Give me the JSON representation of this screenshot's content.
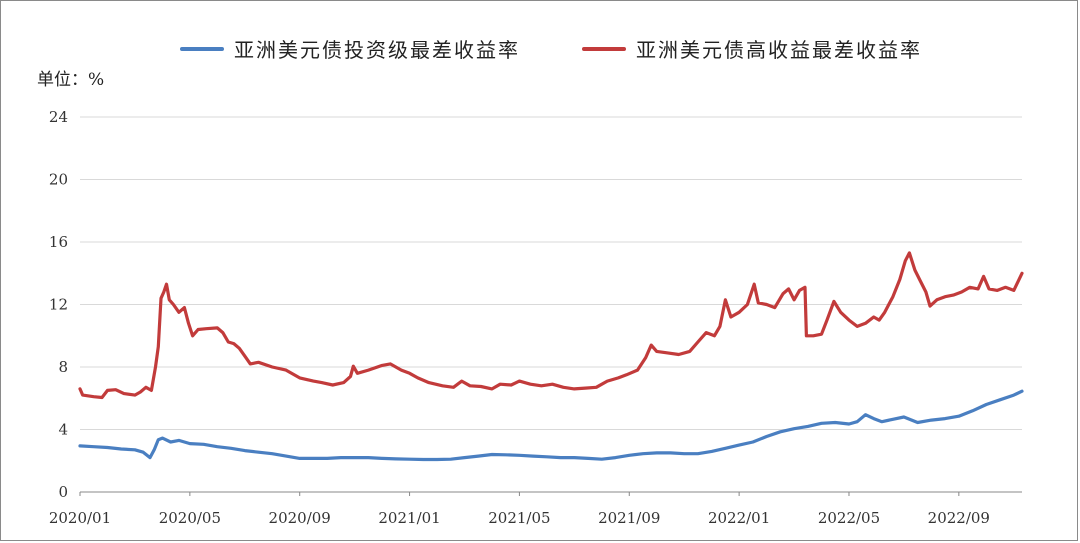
{
  "unit_label": "单位：%",
  "colors": {
    "series_0": "#4a7fc1",
    "series_1": "#c23b3b",
    "grid": "#d9d9d9",
    "axis": "#888888"
  },
  "chart_data": {
    "type": "line",
    "title": "",
    "xlabel": "",
    "ylabel": "单位：%",
    "ylim": [
      0,
      24
    ],
    "yticks": [
      "0",
      "4",
      "8",
      "12",
      "16",
      "20",
      "24"
    ],
    "grid": true,
    "legend_position": "top",
    "x_ticks": [
      "2020/01",
      "2020/05",
      "2020/09",
      "2021/01",
      "2021/05",
      "2021/09",
      "2022/01",
      "2022/05",
      "2022/09"
    ],
    "x_range_months": [
      0,
      34.3
    ],
    "series": [
      {
        "name": "亚洲美元债投资级最差收益率",
        "color": "#4a7fc1",
        "points": [
          [
            0,
            2.95
          ],
          [
            0.5,
            2.9
          ],
          [
            1,
            2.85
          ],
          [
            1.5,
            2.75
          ],
          [
            2,
            2.7
          ],
          [
            2.3,
            2.55
          ],
          [
            2.55,
            2.2
          ],
          [
            2.7,
            2.7
          ],
          [
            2.85,
            3.35
          ],
          [
            3.0,
            3.45
          ],
          [
            3.3,
            3.2
          ],
          [
            3.6,
            3.3
          ],
          [
            4,
            3.1
          ],
          [
            4.5,
            3.05
          ],
          [
            5,
            2.9
          ],
          [
            5.5,
            2.8
          ],
          [
            6,
            2.65
          ],
          [
            6.5,
            2.55
          ],
          [
            7,
            2.45
          ],
          [
            7.5,
            2.3
          ],
          [
            8,
            2.15
          ],
          [
            8.5,
            2.15
          ],
          [
            9,
            2.15
          ],
          [
            9.5,
            2.2
          ],
          [
            10,
            2.2
          ],
          [
            10.5,
            2.2
          ],
          [
            11,
            2.15
          ],
          [
            11.5,
            2.12
          ],
          [
            12,
            2.1
          ],
          [
            12.5,
            2.08
          ],
          [
            13,
            2.08
          ],
          [
            13.5,
            2.1
          ],
          [
            14,
            2.2
          ],
          [
            14.5,
            2.3
          ],
          [
            15,
            2.4
          ],
          [
            15.5,
            2.38
          ],
          [
            16,
            2.35
          ],
          [
            16.5,
            2.3
          ],
          [
            17,
            2.25
          ],
          [
            17.5,
            2.2
          ],
          [
            18,
            2.2
          ],
          [
            18.5,
            2.15
          ],
          [
            19,
            2.1
          ],
          [
            19.5,
            2.2
          ],
          [
            20,
            2.35
          ],
          [
            20.5,
            2.45
          ],
          [
            21,
            2.5
          ],
          [
            21.5,
            2.5
          ],
          [
            22,
            2.45
          ],
          [
            22.5,
            2.45
          ],
          [
            23,
            2.6
          ],
          [
            23.5,
            2.8
          ],
          [
            24,
            3.0
          ],
          [
            24.5,
            3.2
          ],
          [
            25,
            3.55
          ],
          [
            25.5,
            3.85
          ],
          [
            26,
            4.05
          ],
          [
            26.5,
            4.2
          ],
          [
            27,
            4.4
          ],
          [
            27.5,
            4.45
          ],
          [
            28,
            4.35
          ],
          [
            28.3,
            4.5
          ],
          [
            28.6,
            4.95
          ],
          [
            28.9,
            4.7
          ],
          [
            29.2,
            4.5
          ],
          [
            29.6,
            4.65
          ],
          [
            30,
            4.8
          ],
          [
            30.5,
            4.45
          ],
          [
            31,
            4.6
          ],
          [
            31.5,
            4.7
          ],
          [
            32,
            4.85
          ],
          [
            32.5,
            5.2
          ],
          [
            33,
            5.6
          ],
          [
            33.5,
            5.9
          ],
          [
            34,
            6.2
          ],
          [
            34.3,
            6.45
          ]
        ]
      },
      {
        "name": "亚洲美元债高收益最差收益率",
        "color": "#c23b3b",
        "points": [
          [
            0,
            6.6
          ],
          [
            0.1,
            6.2
          ],
          [
            0.5,
            6.1
          ],
          [
            0.8,
            6.05
          ],
          [
            1.0,
            6.5
          ],
          [
            1.3,
            6.55
          ],
          [
            1.6,
            6.3
          ],
          [
            2.0,
            6.2
          ],
          [
            2.2,
            6.4
          ],
          [
            2.4,
            6.7
          ],
          [
            2.6,
            6.5
          ],
          [
            2.75,
            8.0
          ],
          [
            2.85,
            9.3
          ],
          [
            2.95,
            12.4
          ],
          [
            3.05,
            12.8
          ],
          [
            3.15,
            13.3
          ],
          [
            3.25,
            12.3
          ],
          [
            3.4,
            12.0
          ],
          [
            3.6,
            11.5
          ],
          [
            3.8,
            11.8
          ],
          [
            3.95,
            10.8
          ],
          [
            4.1,
            10.0
          ],
          [
            4.3,
            10.4
          ],
          [
            4.6,
            10.45
          ],
          [
            5.0,
            10.5
          ],
          [
            5.2,
            10.2
          ],
          [
            5.4,
            9.6
          ],
          [
            5.6,
            9.5
          ],
          [
            5.8,
            9.2
          ],
          [
            6.0,
            8.7
          ],
          [
            6.2,
            8.2
          ],
          [
            6.5,
            8.3
          ],
          [
            7.0,
            8.0
          ],
          [
            7.5,
            7.8
          ],
          [
            8.0,
            7.3
          ],
          [
            8.5,
            7.1
          ],
          [
            8.8,
            7.0
          ],
          [
            9.2,
            6.85
          ],
          [
            9.6,
            7.0
          ],
          [
            9.85,
            7.4
          ],
          [
            9.95,
            8.05
          ],
          [
            10.1,
            7.6
          ],
          [
            10.5,
            7.8
          ],
          [
            11.0,
            8.1
          ],
          [
            11.3,
            8.2
          ],
          [
            11.7,
            7.8
          ],
          [
            12.0,
            7.6
          ],
          [
            12.3,
            7.3
          ],
          [
            12.7,
            7.0
          ],
          [
            13.2,
            6.8
          ],
          [
            13.6,
            6.7
          ],
          [
            13.9,
            7.1
          ],
          [
            14.2,
            6.8
          ],
          [
            14.6,
            6.75
          ],
          [
            15.0,
            6.6
          ],
          [
            15.3,
            6.9
          ],
          [
            15.7,
            6.85
          ],
          [
            16.0,
            7.1
          ],
          [
            16.4,
            6.9
          ],
          [
            16.8,
            6.8
          ],
          [
            17.2,
            6.9
          ],
          [
            17.6,
            6.7
          ],
          [
            18.0,
            6.6
          ],
          [
            18.4,
            6.65
          ],
          [
            18.8,
            6.7
          ],
          [
            19.2,
            7.1
          ],
          [
            19.6,
            7.3
          ],
          [
            19.9,
            7.5
          ],
          [
            20.3,
            7.8
          ],
          [
            20.6,
            8.6
          ],
          [
            20.8,
            9.4
          ],
          [
            21.0,
            9.0
          ],
          [
            21.4,
            8.9
          ],
          [
            21.8,
            8.8
          ],
          [
            22.2,
            9.0
          ],
          [
            22.5,
            9.6
          ],
          [
            22.8,
            10.2
          ],
          [
            23.1,
            10.0
          ],
          [
            23.3,
            10.6
          ],
          [
            23.5,
            12.3
          ],
          [
            23.7,
            11.2
          ],
          [
            24.0,
            11.5
          ],
          [
            24.3,
            12.0
          ],
          [
            24.55,
            13.3
          ],
          [
            24.7,
            12.1
          ],
          [
            25.0,
            12.0
          ],
          [
            25.3,
            11.8
          ],
          [
            25.6,
            12.7
          ],
          [
            25.8,
            13.0
          ],
          [
            26.0,
            12.3
          ],
          [
            26.2,
            12.9
          ],
          [
            26.4,
            13.1
          ],
          [
            26.45,
            10.0
          ],
          [
            26.7,
            10.0
          ],
          [
            27.0,
            10.1
          ],
          [
            27.2,
            11.0
          ],
          [
            27.45,
            12.2
          ],
          [
            27.7,
            11.5
          ],
          [
            28.0,
            11.0
          ],
          [
            28.3,
            10.6
          ],
          [
            28.6,
            10.8
          ],
          [
            28.9,
            11.2
          ],
          [
            29.1,
            11.0
          ],
          [
            29.3,
            11.5
          ],
          [
            29.6,
            12.5
          ],
          [
            29.85,
            13.6
          ],
          [
            30.05,
            14.8
          ],
          [
            30.2,
            15.3
          ],
          [
            30.4,
            14.2
          ],
          [
            30.6,
            13.5
          ],
          [
            30.8,
            12.8
          ],
          [
            30.95,
            11.9
          ],
          [
            31.2,
            12.3
          ],
          [
            31.5,
            12.5
          ],
          [
            31.8,
            12.6
          ],
          [
            32.1,
            12.8
          ],
          [
            32.4,
            13.1
          ],
          [
            32.7,
            13.0
          ],
          [
            32.9,
            13.8
          ],
          [
            33.1,
            13.0
          ],
          [
            33.4,
            12.9
          ],
          [
            33.7,
            13.1
          ],
          [
            34.0,
            12.9
          ],
          [
            34.3,
            14.0
          ]
        ]
      }
    ]
  }
}
